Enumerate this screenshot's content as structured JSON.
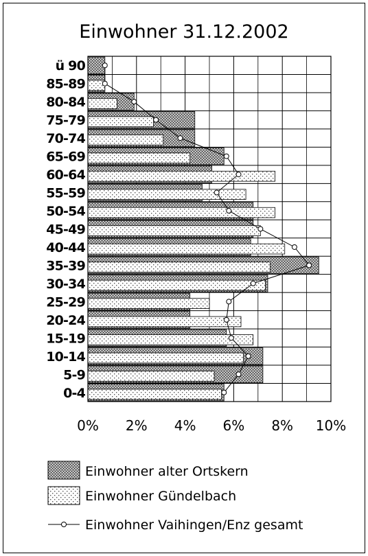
{
  "chart_data": {
    "type": "bar",
    "orientation": "horizontal",
    "title": "Einwohner 31.12.2002",
    "categories": [
      "0-4",
      "5-9",
      "10-14",
      "15-19",
      "20-24",
      "25-29",
      "30-34",
      "35-39",
      "40-44",
      "45-49",
      "50-54",
      "55-59",
      "60-64",
      "65-69",
      "70-74",
      "75-79",
      "80-84",
      "85-89",
      "ü 90"
    ],
    "x_ticks": [
      "0%",
      "2%",
      "4%",
      "6%",
      "8%",
      "10%"
    ],
    "xlim": [
      0,
      10
    ],
    "grid": true,
    "legend_position": "bottom",
    "series": [
      {
        "name": "Einwohner alter Ortskern",
        "kind": "bar",
        "pattern": "dense-dark",
        "values": [
          5.6,
          7.2,
          7.2,
          5.7,
          4.2,
          4.2,
          7.4,
          9.5,
          6.7,
          6.8,
          6.8,
          4.7,
          5.1,
          5.6,
          4.4,
          4.4,
          1.9,
          0.7,
          0.7
        ]
      },
      {
        "name": "Einwohner Gündelbach",
        "kind": "bar",
        "pattern": "light-dotted",
        "values": [
          5.5,
          5.2,
          6.4,
          6.8,
          6.3,
          5.0,
          7.3,
          7.5,
          8.1,
          7.1,
          7.7,
          6.5,
          7.7,
          4.2,
          3.1,
          2.7,
          1.2,
          0.7,
          0
        ]
      },
      {
        "name": "Einwohner Vaihingen/Enz gesamt",
        "kind": "line",
        "marker": "circle",
        "values": [
          5.6,
          6.2,
          6.6,
          5.9,
          5.7,
          5.8,
          6.8,
          9.1,
          8.5,
          7.1,
          5.8,
          5.3,
          6.2,
          5.7,
          3.8,
          2.8,
          1.9,
          0.7,
          0.7
        ]
      }
    ]
  }
}
